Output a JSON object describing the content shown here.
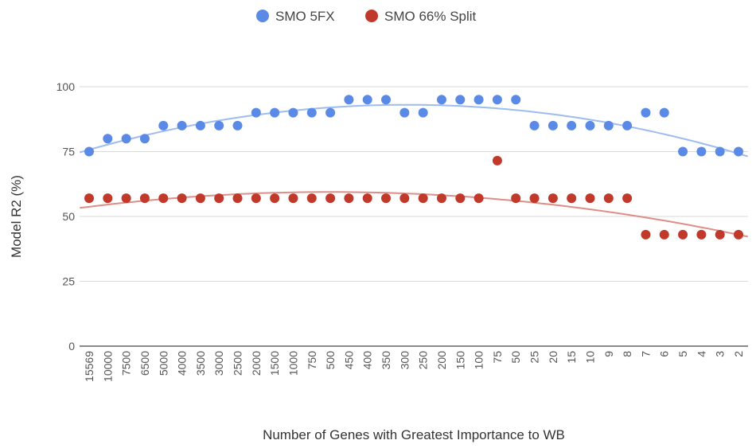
{
  "chart_data": {
    "type": "scatter",
    "title": "",
    "xlabel": "Number of Genes with Greatest Importance to WB",
    "ylabel": "Model R2 (%)",
    "ylim": [
      0,
      100
    ],
    "yticks": [
      0,
      25,
      50,
      75,
      100
    ],
    "grid": true,
    "legend_position": "top-center",
    "categories": [
      "15569",
      "10000",
      "7500",
      "6500",
      "5000",
      "4000",
      "3500",
      "3000",
      "2500",
      "2000",
      "1500",
      "1000",
      "750",
      "500",
      "450",
      "400",
      "350",
      "300",
      "250",
      "200",
      "150",
      "100",
      "75",
      "50",
      "25",
      "20",
      "15",
      "10",
      "9",
      "8",
      "7",
      "6",
      "5",
      "4",
      "3",
      "2"
    ],
    "series": [
      {
        "name": "SMO 5FX",
        "color": "#5a8ae6",
        "trend_color": "#9dbcef",
        "values": [
          75,
          80,
          80,
          80,
          85,
          85,
          85,
          85,
          85,
          90,
          90,
          90,
          90,
          90,
          95,
          95,
          95,
          90,
          90,
          95,
          95,
          95,
          95,
          95,
          85,
          85,
          85,
          85,
          85,
          85,
          90,
          90,
          75,
          75,
          75,
          75
        ]
      },
      {
        "name": "SMO 66% Split",
        "color": "#c0392b",
        "trend_color": "#dd8e86",
        "values": [
          57,
          57,
          57,
          57,
          57,
          57,
          57,
          57,
          57,
          57,
          57,
          57,
          57,
          57,
          57,
          57,
          57,
          57,
          57,
          57,
          57,
          57,
          71.5,
          57,
          57,
          57,
          57,
          57,
          57,
          57,
          43,
          43,
          43,
          43,
          43,
          43
        ]
      }
    ]
  }
}
